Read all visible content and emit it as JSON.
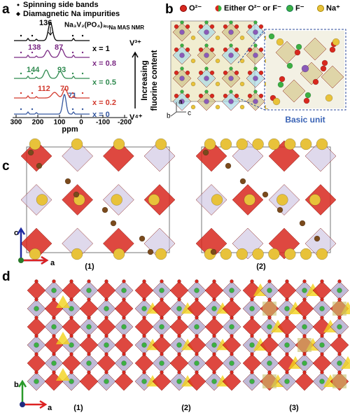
{
  "panel_a": {
    "label": "a",
    "legend": [
      "Spinning side bands",
      "Diamagnetic Na impurities"
    ],
    "compound": "Na₃V₂(PO₄)₃",
    "technique": "²³Na MAS NMR",
    "spectra": [
      {
        "composition": "x = 1",
        "peaks": [
          "136"
        ]
      },
      {
        "composition": "x = 0.8",
        "peaks": [
          "138",
          "87"
        ]
      },
      {
        "composition": "x = 0.5",
        "peaks": [
          "144",
          "93"
        ]
      },
      {
        "composition": "x = 0.2",
        "peaks": [
          "112",
          "70"
        ]
      },
      {
        "composition": "x = 0",
        "peaks": [
          "71"
        ]
      }
    ],
    "top_state": "V³⁺",
    "bottom_state": "V⁴⁺",
    "arrow_label": [
      "Increasing",
      "fluorine content"
    ],
    "axis_ticks": [
      "300",
      "200",
      "100",
      "0",
      "-100",
      "-200"
    ],
    "axis_label": "ppm"
  },
  "panel_b": {
    "label": "b",
    "legend": [
      "O²⁻",
      "Either O²⁻ or F⁻",
      "F⁻",
      "Na⁺"
    ],
    "inset_label": "Basic unit",
    "axes": [
      "a",
      "b",
      "c"
    ]
  },
  "panel_c": {
    "label": "c",
    "structures": [
      "(1)",
      "(2)"
    ],
    "axes": [
      "c",
      "a"
    ]
  },
  "panel_d": {
    "label": "d",
    "structures": [
      "(1)",
      "(2)",
      "(3)"
    ],
    "axes": [
      "b",
      "a"
    ]
  }
}
